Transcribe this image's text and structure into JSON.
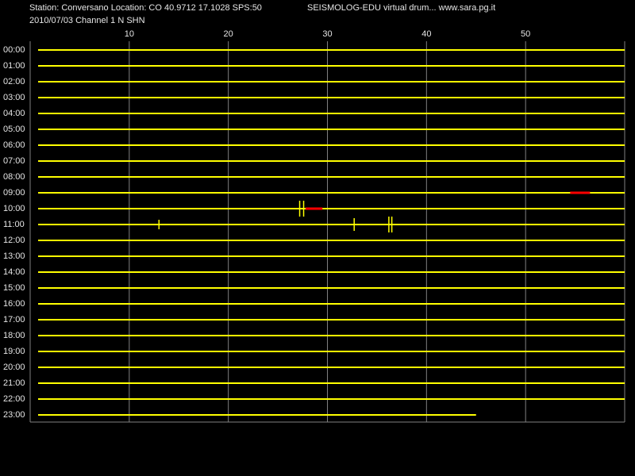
{
  "chart_data": {
    "type": "drum",
    "station": "Station: Conversano Location: CO 40.9712 17.1028 SPS:50",
    "title": "SEISMOLOG-EDU virtual drum... www.sara.pg.it",
    "subtitle": "2010/07/03  Channel 1 N SHN",
    "xlim": [
      0,
      60
    ],
    "xticks": [
      10,
      20,
      30,
      40,
      50
    ],
    "grid": true,
    "trace_color": "#ffff00",
    "pick_color": "#ff0000",
    "rows": [
      "00:00",
      "01:00",
      "02:00",
      "03:00",
      "04:00",
      "05:00",
      "06:00",
      "07:00",
      "08:00",
      "09:00",
      "10:00",
      "11:00",
      "12:00",
      "13:00",
      "14:00",
      "15:00",
      "16:00",
      "17:00",
      "18:00",
      "19:00",
      "20:00",
      "21:00",
      "22:00",
      "23:00"
    ],
    "trace_end": [
      60,
      60,
      60,
      60,
      60,
      60,
      60,
      60,
      60,
      60,
      60,
      60,
      60,
      60,
      60,
      60,
      60,
      60,
      60,
      60,
      60,
      60,
      60,
      45
    ],
    "events": {
      "row": [
        10,
        10,
        11,
        11,
        11,
        11
      ],
      "x": [
        27.2,
        27.6,
        13,
        32.7,
        36.2,
        36.5
      ],
      "amplitude": [
        0.5,
        0.5,
        0.3,
        0.4,
        0.5,
        0.5
      ]
    },
    "picks": {
      "row": [
        9,
        10
      ],
      "start": [
        54.5,
        27.8
      ],
      "end": [
        56.5,
        29.5
      ]
    }
  }
}
